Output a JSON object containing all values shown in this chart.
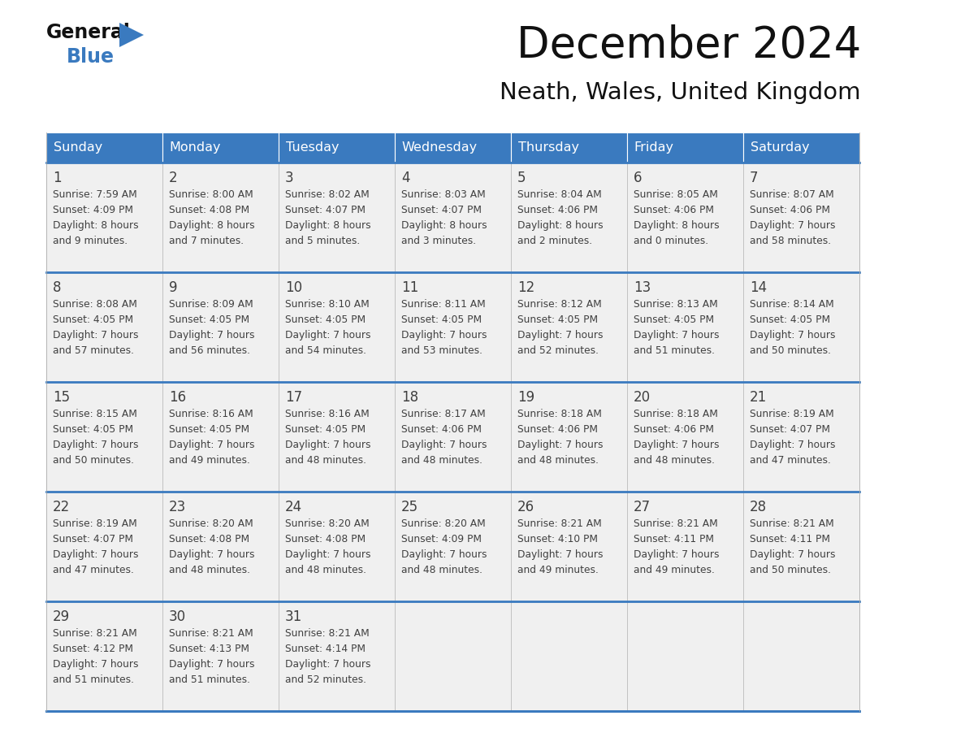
{
  "title": "December 2024",
  "subtitle": "Neath, Wales, United Kingdom",
  "header_color": "#3a7abf",
  "header_text_color": "#ffffff",
  "bg_color": "#ffffff",
  "cell_bg": "#f0f0f0",
  "border_color": "#3a7abf",
  "text_color": "#404040",
  "days_of_week": [
    "Sunday",
    "Monday",
    "Tuesday",
    "Wednesday",
    "Thursday",
    "Friday",
    "Saturday"
  ],
  "weeks": [
    [
      {
        "day": 1,
        "sunrise": "7:59 AM",
        "sunset": "4:09 PM",
        "daylight1": "8 hours",
        "daylight2": "and 9 minutes."
      },
      {
        "day": 2,
        "sunrise": "8:00 AM",
        "sunset": "4:08 PM",
        "daylight1": "8 hours",
        "daylight2": "and 7 minutes."
      },
      {
        "day": 3,
        "sunrise": "8:02 AM",
        "sunset": "4:07 PM",
        "daylight1": "8 hours",
        "daylight2": "and 5 minutes."
      },
      {
        "day": 4,
        "sunrise": "8:03 AM",
        "sunset": "4:07 PM",
        "daylight1": "8 hours",
        "daylight2": "and 3 minutes."
      },
      {
        "day": 5,
        "sunrise": "8:04 AM",
        "sunset": "4:06 PM",
        "daylight1": "8 hours",
        "daylight2": "and 2 minutes."
      },
      {
        "day": 6,
        "sunrise": "8:05 AM",
        "sunset": "4:06 PM",
        "daylight1": "8 hours",
        "daylight2": "and 0 minutes."
      },
      {
        "day": 7,
        "sunrise": "8:07 AM",
        "sunset": "4:06 PM",
        "daylight1": "7 hours",
        "daylight2": "and 58 minutes."
      }
    ],
    [
      {
        "day": 8,
        "sunrise": "8:08 AM",
        "sunset": "4:05 PM",
        "daylight1": "7 hours",
        "daylight2": "and 57 minutes."
      },
      {
        "day": 9,
        "sunrise": "8:09 AM",
        "sunset": "4:05 PM",
        "daylight1": "7 hours",
        "daylight2": "and 56 minutes."
      },
      {
        "day": 10,
        "sunrise": "8:10 AM",
        "sunset": "4:05 PM",
        "daylight1": "7 hours",
        "daylight2": "and 54 minutes."
      },
      {
        "day": 11,
        "sunrise": "8:11 AM",
        "sunset": "4:05 PM",
        "daylight1": "7 hours",
        "daylight2": "and 53 minutes."
      },
      {
        "day": 12,
        "sunrise": "8:12 AM",
        "sunset": "4:05 PM",
        "daylight1": "7 hours",
        "daylight2": "and 52 minutes."
      },
      {
        "day": 13,
        "sunrise": "8:13 AM",
        "sunset": "4:05 PM",
        "daylight1": "7 hours",
        "daylight2": "and 51 minutes."
      },
      {
        "day": 14,
        "sunrise": "8:14 AM",
        "sunset": "4:05 PM",
        "daylight1": "7 hours",
        "daylight2": "and 50 minutes."
      }
    ],
    [
      {
        "day": 15,
        "sunrise": "8:15 AM",
        "sunset": "4:05 PM",
        "daylight1": "7 hours",
        "daylight2": "and 50 minutes."
      },
      {
        "day": 16,
        "sunrise": "8:16 AM",
        "sunset": "4:05 PM",
        "daylight1": "7 hours",
        "daylight2": "and 49 minutes."
      },
      {
        "day": 17,
        "sunrise": "8:16 AM",
        "sunset": "4:05 PM",
        "daylight1": "7 hours",
        "daylight2": "and 48 minutes."
      },
      {
        "day": 18,
        "sunrise": "8:17 AM",
        "sunset": "4:06 PM",
        "daylight1": "7 hours",
        "daylight2": "and 48 minutes."
      },
      {
        "day": 19,
        "sunrise": "8:18 AM",
        "sunset": "4:06 PM",
        "daylight1": "7 hours",
        "daylight2": "and 48 minutes."
      },
      {
        "day": 20,
        "sunrise": "8:18 AM",
        "sunset": "4:06 PM",
        "daylight1": "7 hours",
        "daylight2": "and 48 minutes."
      },
      {
        "day": 21,
        "sunrise": "8:19 AM",
        "sunset": "4:07 PM",
        "daylight1": "7 hours",
        "daylight2": "and 47 minutes."
      }
    ],
    [
      {
        "day": 22,
        "sunrise": "8:19 AM",
        "sunset": "4:07 PM",
        "daylight1": "7 hours",
        "daylight2": "and 47 minutes."
      },
      {
        "day": 23,
        "sunrise": "8:20 AM",
        "sunset": "4:08 PM",
        "daylight1": "7 hours",
        "daylight2": "and 48 minutes."
      },
      {
        "day": 24,
        "sunrise": "8:20 AM",
        "sunset": "4:08 PM",
        "daylight1": "7 hours",
        "daylight2": "and 48 minutes."
      },
      {
        "day": 25,
        "sunrise": "8:20 AM",
        "sunset": "4:09 PM",
        "daylight1": "7 hours",
        "daylight2": "and 48 minutes."
      },
      {
        "day": 26,
        "sunrise": "8:21 AM",
        "sunset": "4:10 PM",
        "daylight1": "7 hours",
        "daylight2": "and 49 minutes."
      },
      {
        "day": 27,
        "sunrise": "8:21 AM",
        "sunset": "4:11 PM",
        "daylight1": "7 hours",
        "daylight2": "and 49 minutes."
      },
      {
        "day": 28,
        "sunrise": "8:21 AM",
        "sunset": "4:11 PM",
        "daylight1": "7 hours",
        "daylight2": "and 50 minutes."
      }
    ],
    [
      {
        "day": 29,
        "sunrise": "8:21 AM",
        "sunset": "4:12 PM",
        "daylight1": "7 hours",
        "daylight2": "and 51 minutes."
      },
      {
        "day": 30,
        "sunrise": "8:21 AM",
        "sunset": "4:13 PM",
        "daylight1": "7 hours",
        "daylight2": "and 51 minutes."
      },
      {
        "day": 31,
        "sunrise": "8:21 AM",
        "sunset": "4:14 PM",
        "daylight1": "7 hours",
        "daylight2": "and 52 minutes."
      },
      null,
      null,
      null,
      null
    ]
  ]
}
